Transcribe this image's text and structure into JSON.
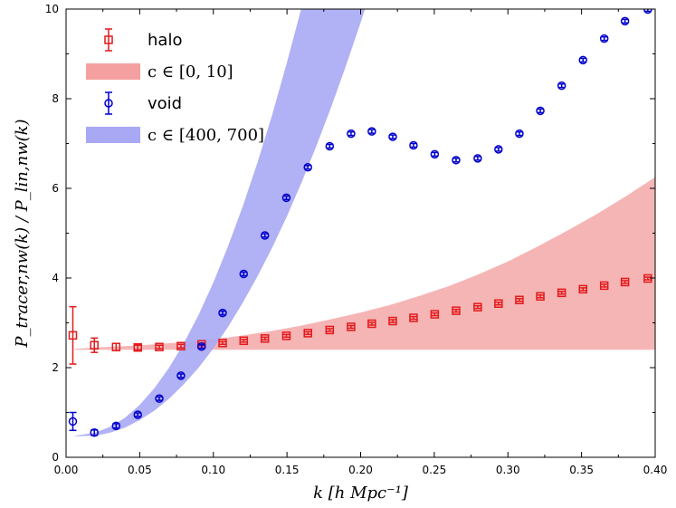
{
  "chart_data": {
    "type": "scatter",
    "xlabel": "k [h Mpc⁻¹]",
    "ylabel": "P_tracer,nw(k) / P_lin,nw(k)",
    "xlim": [
      0.0,
      0.4
    ],
    "ylim": [
      0,
      10
    ],
    "x_ticks": [
      "0.00",
      "0.05",
      "0.10",
      "0.15",
      "0.20",
      "0.25",
      "0.30",
      "0.35",
      "0.40"
    ],
    "y_ticks": [
      "0",
      "2",
      "4",
      "6",
      "8",
      "10"
    ],
    "legend_position": "upper-left",
    "series": [
      {
        "name": "halo",
        "marker": "square",
        "color": "#e31a1c",
        "x": [
          0.0046,
          0.0192,
          0.034,
          0.0487,
          0.0633,
          0.078,
          0.092,
          0.1063,
          0.1206,
          0.135,
          0.1496,
          0.1642,
          0.179,
          0.1935,
          0.2076,
          0.2218,
          0.2359,
          0.2503,
          0.2648,
          0.2795,
          0.2936,
          0.3078,
          0.322,
          0.3365,
          0.351,
          0.3654,
          0.3795,
          0.395
        ],
        "y": [
          2.72,
          2.5,
          2.46,
          2.45,
          2.46,
          2.48,
          2.52,
          2.55,
          2.6,
          2.65,
          2.71,
          2.77,
          2.84,
          2.91,
          2.98,
          3.04,
          3.11,
          3.19,
          3.27,
          3.35,
          3.43,
          3.51,
          3.59,
          3.67,
          3.75,
          3.83,
          3.91,
          3.99
        ],
        "yerr": [
          0.64,
          0.16,
          0.08,
          0.05,
          0.04,
          0.04,
          0.03,
          0.03,
          0.03,
          0.03,
          0.03,
          0.03,
          0.03,
          0.03,
          0.03,
          0.03,
          0.03,
          0.03,
          0.03,
          0.03,
          0.03,
          0.03,
          0.03,
          0.03,
          0.03,
          0.03,
          0.03,
          0.03
        ]
      },
      {
        "name": "void",
        "marker": "circle",
        "color": "#0000cc",
        "x": [
          0.0046,
          0.0192,
          0.034,
          0.0487,
          0.0633,
          0.078,
          0.092,
          0.1063,
          0.1206,
          0.135,
          0.1496,
          0.1642,
          0.179,
          0.1935,
          0.2076,
          0.2218,
          0.2359,
          0.2503,
          0.2648,
          0.2795,
          0.2936,
          0.3078,
          0.322,
          0.3365,
          0.351,
          0.3654,
          0.3795,
          0.395
        ],
        "y": [
          0.8,
          0.55,
          0.7,
          0.95,
          1.31,
          1.82,
          2.47,
          3.22,
          4.09,
          4.95,
          5.79,
          6.47,
          6.94,
          7.22,
          7.27,
          7.15,
          6.96,
          6.76,
          6.63,
          6.67,
          6.87,
          7.22,
          7.73,
          8.29,
          8.86,
          9.34,
          9.73,
          9.99
        ],
        "yerr": [
          0.2,
          0.06,
          0.05,
          0.04,
          0.04,
          0.04,
          0.04,
          0.04,
          0.04,
          0.04,
          0.04,
          0.04,
          0.04,
          0.04,
          0.04,
          0.04,
          0.04,
          0.04,
          0.04,
          0.04,
          0.04,
          0.04,
          0.04,
          0.04,
          0.04,
          0.04,
          0.04,
          0.04
        ]
      }
    ],
    "bands": [
      {
        "name": "c ∈ [0, 10]",
        "color": "#f4a0a0",
        "x": [
          0.006,
          0.02,
          0.04,
          0.06,
          0.08,
          0.1,
          0.12,
          0.14,
          0.16,
          0.18,
          0.2,
          0.22,
          0.24,
          0.26,
          0.28,
          0.3,
          0.32,
          0.34,
          0.36,
          0.38,
          0.4
        ],
        "lower": [
          2.4,
          2.4,
          2.4,
          2.4,
          2.4,
          2.4,
          2.4,
          2.4,
          2.4,
          2.4,
          2.4,
          2.4,
          2.4,
          2.4,
          2.4,
          2.4,
          2.4,
          2.4,
          2.4,
          2.4,
          2.4
        ],
        "upper": [
          2.42,
          2.45,
          2.48,
          2.52,
          2.57,
          2.63,
          2.72,
          2.82,
          2.94,
          3.08,
          3.23,
          3.4,
          3.6,
          3.82,
          4.08,
          4.37,
          4.7,
          5.05,
          5.42,
          5.82,
          6.25
        ]
      },
      {
        "name": "c ∈ [400, 700]",
        "color": "#a8a8f4",
        "x": [
          0.006,
          0.02,
          0.03,
          0.04,
          0.05,
          0.06,
          0.07,
          0.08,
          0.09,
          0.1,
          0.11,
          0.12,
          0.13,
          0.14,
          0.15,
          0.16,
          0.17,
          0.18,
          0.19,
          0.2,
          0.21
        ],
        "lower": [
          0.47,
          0.48,
          0.55,
          0.66,
          0.83,
          1.04,
          1.31,
          1.63,
          2.0,
          2.43,
          2.91,
          3.45,
          4.04,
          4.68,
          5.38,
          6.14,
          6.95,
          7.81,
          8.73,
          9.7,
          10.72
        ],
        "upper": [
          0.48,
          0.55,
          0.68,
          0.88,
          1.17,
          1.54,
          2.0,
          2.55,
          3.18,
          3.9,
          4.71,
          5.6,
          6.58,
          7.65,
          8.81,
          10.05,
          11.4,
          12.8,
          14.3,
          15.9,
          17.6
        ]
      }
    ],
    "legend": [
      {
        "label": "halo",
        "kind": "errorbar",
        "marker": "square",
        "color": "#e31a1c"
      },
      {
        "label": "c ∈ [0, 10]",
        "kind": "band",
        "color": "#f4a0a0"
      },
      {
        "label": "void",
        "kind": "errorbar",
        "marker": "circle",
        "color": "#0000cc"
      },
      {
        "label": "c ∈ [400, 700]",
        "kind": "band",
        "color": "#a8a8f4"
      }
    ]
  }
}
